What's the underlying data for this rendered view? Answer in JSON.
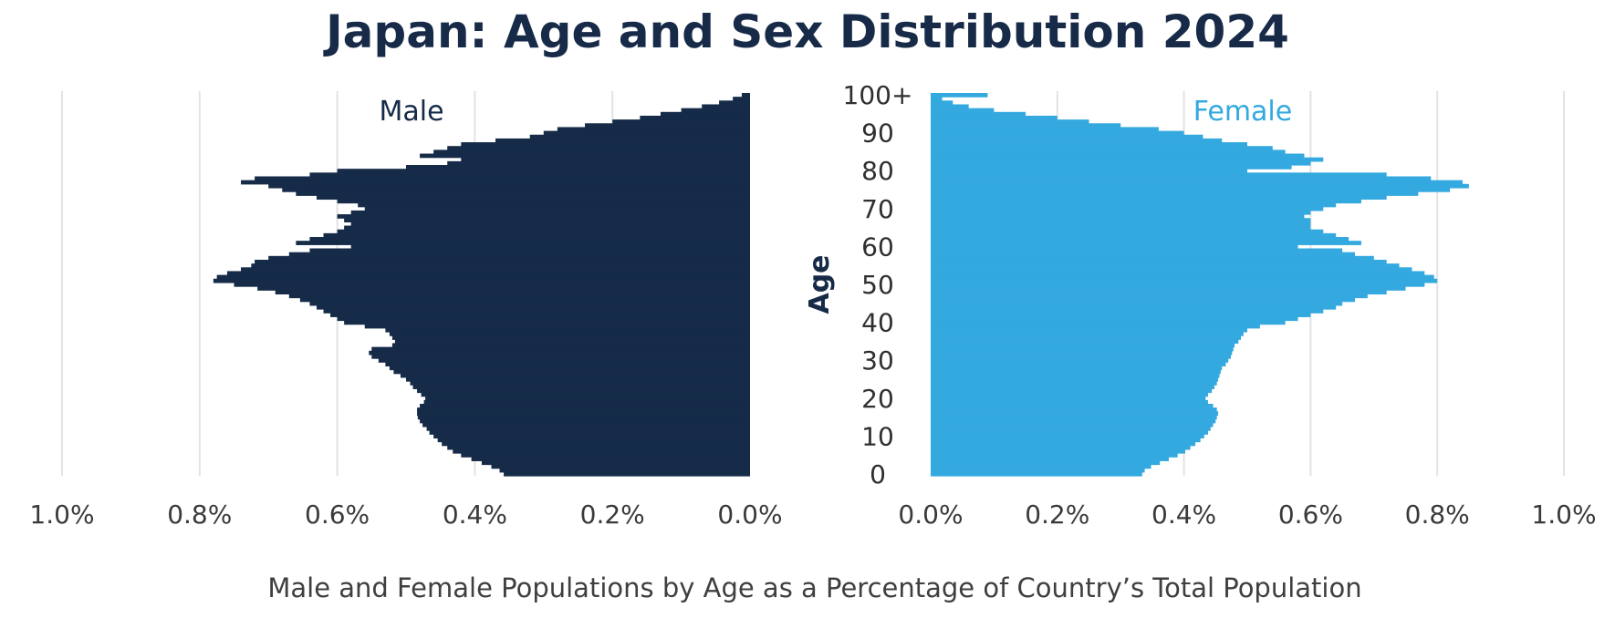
{
  "chart_data": {
    "type": "bar",
    "orientation": "horizontal-population-pyramid",
    "title": "Japan: Age and Sex Distribution 2024",
    "subtitle": "Male and Female Populations by Age as a Percentage of Country’s Total Population",
    "ylabel": "Age",
    "x_unit": "%",
    "xlim": [
      0,
      1.0
    ],
    "x_ticks": [
      0,
      0.2,
      0.4,
      0.6,
      0.8,
      1.0
    ],
    "male_x_tick_labels": [
      "1.0%",
      "0.8%",
      "0.6%",
      "0.4%",
      "0.2%",
      "0.0%"
    ],
    "female_x_tick_labels": [
      "0.0%",
      "0.2%",
      "0.4%",
      "0.6%",
      "0.8%",
      "1.0%"
    ],
    "y_ticks": [
      0,
      10,
      20,
      30,
      40,
      50,
      60,
      70,
      80,
      90,
      100
    ],
    "y_tick_labels": [
      "0",
      "10",
      "20",
      "30",
      "40",
      "50",
      "60",
      "70",
      "80",
      "90",
      "100+"
    ],
    "grid": true,
    "colors": {
      "male": "#152b48",
      "female": "#33a9df"
    },
    "ages": [
      0,
      1,
      2,
      3,
      4,
      5,
      6,
      7,
      8,
      9,
      10,
      11,
      12,
      13,
      14,
      15,
      16,
      17,
      18,
      19,
      20,
      21,
      22,
      23,
      24,
      25,
      26,
      27,
      28,
      29,
      30,
      31,
      32,
      33,
      34,
      35,
      36,
      37,
      38,
      39,
      40,
      41,
      42,
      43,
      44,
      45,
      46,
      47,
      48,
      49,
      50,
      51,
      52,
      53,
      54,
      55,
      56,
      57,
      58,
      59,
      60,
      61,
      62,
      63,
      64,
      65,
      66,
      67,
      68,
      69,
      70,
      71,
      72,
      73,
      74,
      75,
      76,
      77,
      78,
      79,
      80,
      81,
      82,
      83,
      84,
      85,
      86,
      87,
      88,
      89,
      90,
      91,
      92,
      93,
      94,
      95,
      96,
      97,
      98,
      99,
      100
    ],
    "series": [
      {
        "name": "Male",
        "values": [
          0.358,
          0.364,
          0.376,
          0.39,
          0.405,
          0.42,
          0.432,
          0.44,
          0.448,
          0.454,
          0.46,
          0.466,
          0.47,
          0.476,
          0.48,
          0.483,
          0.484,
          0.484,
          0.48,
          0.474,
          0.472,
          0.478,
          0.484,
          0.49,
          0.494,
          0.5,
          0.508,
          0.518,
          0.524,
          0.53,
          0.54,
          0.55,
          0.554,
          0.55,
          0.52,
          0.516,
          0.52,
          0.524,
          0.53,
          0.56,
          0.59,
          0.6,
          0.61,
          0.62,
          0.63,
          0.64,
          0.654,
          0.67,
          0.69,
          0.716,
          0.75,
          0.78,
          0.775,
          0.76,
          0.74,
          0.725,
          0.72,
          0.7,
          0.67,
          0.64,
          0.58,
          0.66,
          0.64,
          0.62,
          0.6,
          0.59,
          0.58,
          0.59,
          0.6,
          0.58,
          0.56,
          0.57,
          0.6,
          0.63,
          0.66,
          0.68,
          0.7,
          0.74,
          0.72,
          0.64,
          0.6,
          0.5,
          0.44,
          0.42,
          0.48,
          0.46,
          0.44,
          0.42,
          0.37,
          0.32,
          0.3,
          0.28,
          0.24,
          0.2,
          0.16,
          0.13,
          0.1,
          0.07,
          0.045,
          0.025,
          0.012
        ]
      },
      {
        "name": "Female",
        "values": [
          0.334,
          0.338,
          0.348,
          0.362,
          0.376,
          0.39,
          0.402,
          0.41,
          0.418,
          0.426,
          0.432,
          0.438,
          0.442,
          0.446,
          0.45,
          0.452,
          0.454,
          0.452,
          0.446,
          0.438,
          0.434,
          0.438,
          0.444,
          0.448,
          0.452,
          0.454,
          0.456,
          0.458,
          0.46,
          0.466,
          0.47,
          0.474,
          0.476,
          0.478,
          0.48,
          0.486,
          0.49,
          0.494,
          0.5,
          0.52,
          0.56,
          0.58,
          0.6,
          0.62,
          0.64,
          0.65,
          0.67,
          0.69,
          0.72,
          0.75,
          0.78,
          0.8,
          0.795,
          0.78,
          0.76,
          0.74,
          0.72,
          0.7,
          0.67,
          0.65,
          0.58,
          0.68,
          0.66,
          0.64,
          0.62,
          0.6,
          0.6,
          0.6,
          0.59,
          0.6,
          0.62,
          0.64,
          0.68,
          0.72,
          0.77,
          0.82,
          0.85,
          0.84,
          0.79,
          0.72,
          0.5,
          0.57,
          0.6,
          0.62,
          0.59,
          0.56,
          0.54,
          0.5,
          0.46,
          0.43,
          0.4,
          0.36,
          0.3,
          0.25,
          0.2,
          0.15,
          0.1,
          0.06,
          0.035,
          0.018,
          0.09
        ]
      }
    ]
  }
}
